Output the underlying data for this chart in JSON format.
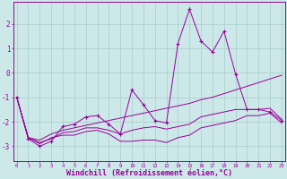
{
  "background_color": "#cce8e8",
  "grid_color": "#aacccc",
  "line_color": "#990099",
  "xlabel": "Windchill (Refroidissement éolien,°C)",
  "xlabel_fontsize": 6.0,
  "ytick_labels": [
    "-3",
    "-2",
    "-1",
    "0",
    "1",
    "2"
  ],
  "ytick_vals": [
    -3,
    -2,
    -1,
    0,
    1,
    2
  ],
  "xtick_vals": [
    0,
    1,
    2,
    3,
    4,
    5,
    6,
    7,
    8,
    9,
    10,
    11,
    12,
    13,
    14,
    15,
    16,
    17,
    18,
    19,
    20,
    21,
    22,
    23
  ],
  "xlim": [
    -0.3,
    23.3
  ],
  "ylim": [
    -3.6,
    2.9
  ],
  "series_main": [
    -1.0,
    -2.7,
    -3.0,
    -2.8,
    -2.2,
    -2.1,
    -1.8,
    -1.75,
    -2.1,
    -2.5,
    -0.7,
    -1.3,
    -1.95,
    -2.05,
    1.2,
    2.6,
    1.3,
    0.85,
    1.7,
    -0.05,
    -1.5,
    -1.5,
    -1.6,
    -1.95
  ],
  "series_smooth1": [
    -1.0,
    -2.65,
    -2.75,
    -2.5,
    -2.35,
    -2.25,
    -2.15,
    -2.05,
    -1.95,
    -1.85,
    -1.75,
    -1.65,
    -1.55,
    -1.45,
    -1.35,
    -1.25,
    -1.1,
    -1.0,
    -0.85,
    -0.7,
    -0.55,
    -0.4,
    -0.25,
    -0.1
  ],
  "series_smooth2": [
    -1.0,
    -2.65,
    -2.85,
    -2.7,
    -2.45,
    -2.4,
    -2.25,
    -2.25,
    -2.35,
    -2.5,
    -2.35,
    -2.25,
    -2.2,
    -2.3,
    -2.2,
    -2.1,
    -1.8,
    -1.7,
    -1.6,
    -1.5,
    -1.5,
    -1.5,
    -1.45,
    -1.9
  ],
  "series_smooth3": [
    -1.0,
    -2.65,
    -2.9,
    -2.65,
    -2.55,
    -2.55,
    -2.4,
    -2.35,
    -2.5,
    -2.8,
    -2.8,
    -2.75,
    -2.75,
    -2.85,
    -2.65,
    -2.55,
    -2.25,
    -2.15,
    -2.05,
    -1.95,
    -1.75,
    -1.75,
    -1.65,
    -2.05
  ]
}
